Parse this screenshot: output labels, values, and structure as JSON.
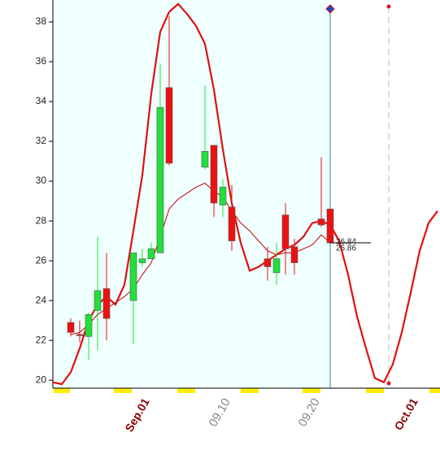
{
  "chart_data": {
    "type": "candlestick",
    "categories": [
      null,
      null,
      null,
      null,
      null,
      null,
      null,
      null,
      null,
      null,
      "Sep.01",
      null,
      null,
      null,
      null,
      null,
      null,
      null,
      null,
      "09.10",
      null,
      null,
      null,
      null,
      null,
      null,
      null,
      null,
      null,
      "09.20",
      null,
      null,
      null,
      null,
      null,
      null,
      null,
      null,
      null,
      null,
      "Oct.01",
      null,
      null,
      null
    ],
    "open": [
      null,
      null,
      22.9,
      22.3,
      22.2,
      23.5,
      24.6,
      null,
      null,
      24.0,
      25.9,
      26.1,
      26.4,
      34.7,
      null,
      null,
      null,
      30.7,
      31.8,
      28.8,
      28.7,
      null,
      null,
      null,
      26.1,
      25.4,
      28.3,
      26.7,
      null,
      null,
      28.1,
      28.6,
      null,
      null,
      null,
      null,
      null,
      null,
      null,
      null,
      null,
      null,
      null,
      null
    ],
    "high": [
      null,
      null,
      23.1,
      23.0,
      23.4,
      27.2,
      26.4,
      null,
      null,
      26.4,
      26.6,
      26.9,
      35.9,
      38.3,
      null,
      null,
      null,
      34.8,
      31.8,
      30.1,
      29.8,
      null,
      null,
      null,
      26.7,
      26.9,
      28.9,
      27.1,
      null,
      null,
      31.2,
      28.6,
      null,
      null,
      null,
      null,
      null,
      null,
      null,
      null,
      null,
      null,
      null,
      null
    ],
    "low": [
      null,
      null,
      22.2,
      21.9,
      21.0,
      21.5,
      22.0,
      null,
      null,
      21.8,
      25.7,
      26.1,
      26.4,
      30.8,
      null,
      null,
      null,
      30.6,
      28.2,
      28.2,
      26.5,
      null,
      null,
      null,
      25.0,
      24.8,
      25.3,
      25.3,
      null,
      null,
      27.7,
      26.9,
      null,
      null,
      null,
      null,
      null,
      null,
      null,
      null,
      null,
      null,
      null,
      null
    ],
    "close": [
      null,
      null,
      22.4,
      22.3,
      23.3,
      24.5,
      23.1,
      null,
      null,
      26.4,
      26.1,
      26.6,
      33.7,
      30.9,
      null,
      null,
      null,
      31.5,
      28.9,
      29.7,
      27.0,
      null,
      null,
      null,
      25.7,
      26.1,
      26.6,
      25.9,
      null,
      null,
      27.8,
      26.9,
      null,
      null,
      null,
      null,
      null,
      null,
      null,
      null,
      null,
      null,
      null,
      null
    ],
    "up_color": "#22e03a",
    "down_color": "#ee1111",
    "series": [
      {
        "color": "#e01010",
        "line_width": 2.2,
        "values": [
          19.9,
          19.8,
          20.4,
          21.6,
          23.0,
          23.8,
          24.2,
          23.8,
          24.8,
          27.5,
          30.3,
          34.4,
          37.5,
          38.5,
          38.9,
          38.4,
          37.8,
          36.9,
          34.6,
          31.6,
          28.9,
          26.9,
          25.5,
          25.7,
          26.0,
          26.3,
          26.6,
          26.8,
          27.2,
          27.9,
          28.0,
          27.8,
          27.0,
          25.3,
          23.2,
          21.6,
          20.1,
          19.9,
          20.8,
          22.4,
          24.4,
          26.5,
          27.9,
          28.5
        ]
      },
      {
        "color": "#cc0000",
        "line_width": 1,
        "values": [
          null,
          null,
          22.3,
          22.4,
          22.8,
          23.3,
          23.6,
          23.9,
          24.2,
          24.6,
          25.3,
          25.9,
          27.2,
          28.6,
          29.1,
          29.4,
          29.7,
          29.9,
          29.5,
          29.2,
          28.5,
          27.9,
          27.5,
          27.0,
          26.5,
          26.3,
          26.4,
          26.4,
          26.6,
          26.8,
          27.3,
          26.9,
          null,
          null,
          null,
          null,
          null,
          null,
          null,
          null,
          null,
          null,
          null,
          null
        ]
      }
    ],
    "annotations": [
      {
        "text": "26.84"
      },
      {
        "text": "26.86"
      }
    ],
    "ylim": [
      19.6,
      39.1
    ],
    "yticks": [
      20,
      22,
      24,
      26,
      28,
      30,
      32,
      34,
      36,
      38
    ]
  }
}
